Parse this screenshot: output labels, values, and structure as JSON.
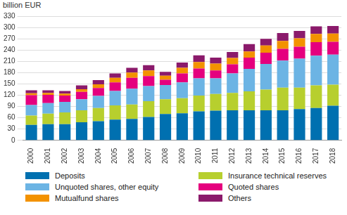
{
  "chart_data": {
    "type": "bar",
    "stacked": true,
    "grid": true,
    "legend": "bottom",
    "y_label": "billion EUR",
    "categories": [
      "2000",
      "2001",
      "2002",
      "2003",
      "2004",
      "2005",
      "2006",
      "2007",
      "2008",
      "2009",
      "2010",
      "2011",
      "2012",
      "2013",
      "2014",
      "2015",
      "2016",
      "2017",
      "2018"
    ],
    "ylim": [
      0,
      330
    ],
    "yticks": [
      0,
      30,
      60,
      90,
      120,
      150,
      180,
      210,
      240,
      270,
      300,
      330
    ],
    "series": [
      {
        "name": "Deposits",
        "color": "#0070b0",
        "values": [
          41,
          43,
          43,
          48,
          51,
          55,
          57,
          62,
          70,
          72,
          77,
          79,
          80,
          80,
          80,
          80,
          83,
          86,
          92
        ]
      },
      {
        "name": "Insurance technical reserves",
        "color": "#b7cf2e",
        "values": [
          25,
          28,
          31,
          32,
          35,
          38,
          38,
          42,
          39,
          40,
          42,
          44,
          46,
          50,
          55,
          60,
          57,
          60,
          56
        ]
      },
      {
        "name": "Unquoted shares, other equity",
        "color": "#6cb4e4",
        "values": [
          28,
          28,
          28,
          29,
          32,
          38,
          42,
          40,
          38,
          42,
          46,
          42,
          52,
          60,
          68,
          72,
          77,
          79,
          80
        ]
      },
      {
        "name": "Quoted shares",
        "color": "#e5007e",
        "values": [
          26,
          22,
          17,
          20,
          21,
          23,
          29,
          27,
          14,
          24,
          26,
          21,
          24,
          30,
          30,
          31,
          32,
          36,
          34
        ]
      },
      {
        "name": "Mutualfund shares",
        "color": "#f39200",
        "values": [
          5,
          5,
          5,
          7,
          10,
          12,
          14,
          15,
          11,
          15,
          17,
          18,
          17,
          16,
          19,
          21,
          22,
          22,
          22
        ]
      },
      {
        "name": "Others",
        "color": "#8b1a6b",
        "values": [
          8,
          7,
          7,
          10,
          11,
          12,
          13,
          14,
          10,
          14,
          18,
          16,
          16,
          20,
          18,
          21,
          20,
          20,
          20
        ]
      }
    ]
  }
}
